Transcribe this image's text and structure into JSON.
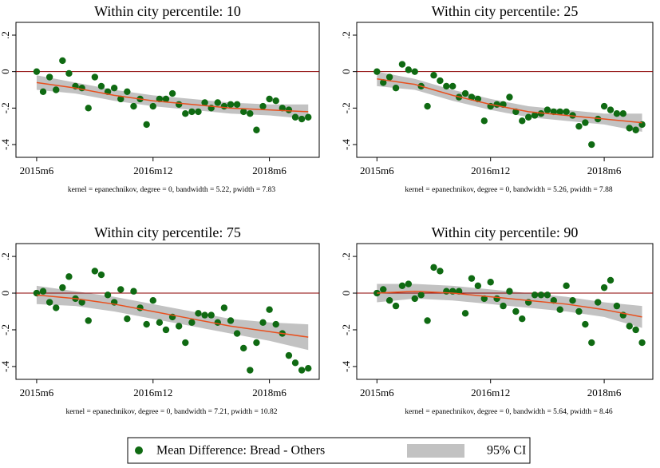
{
  "legend": [
    {
      "name": "Mean Difference: Bread - Others",
      "color": "#0f6a12"
    },
    {
      "name": "95% CI",
      "color": "#c2c2c2"
    }
  ],
  "chart_data": [
    {
      "type": "scatter",
      "title": "Within city percentile: 10",
      "note": "kernel = epanechnikov, degree = 0, bandwidth = 5.22, pwidth = 7.83",
      "x": [
        0,
        1,
        2,
        3,
        4,
        5,
        6,
        7,
        8,
        9,
        10,
        11,
        12,
        13,
        14,
        15,
        16,
        17,
        18,
        19,
        20,
        21,
        22,
        23,
        24,
        25,
        26,
        27,
        28,
        29,
        30,
        31,
        32,
        33,
        34,
        35,
        36,
        37,
        38,
        39,
        40,
        41,
        42
      ],
      "values": [
        0,
        -0.11,
        -0.03,
        -0.1,
        0.06,
        -0.01,
        -0.08,
        -0.09,
        -0.2,
        -0.03,
        -0.08,
        -0.11,
        -0.09,
        -0.15,
        -0.11,
        -0.19,
        -0.15,
        -0.29,
        -0.19,
        -0.15,
        -0.15,
        -0.12,
        -0.18,
        -0.23,
        -0.22,
        -0.22,
        -0.17,
        -0.2,
        -0.17,
        -0.19,
        -0.18,
        -0.18,
        -0.22,
        -0.23,
        -0.32,
        -0.19,
        -0.15,
        -0.16,
        -0.2,
        -0.21,
        -0.25,
        -0.26,
        -0.25
      ],
      "fit_x": [
        0,
        6,
        12,
        18,
        24,
        30,
        36,
        42
      ],
      "fit": [
        -0.06,
        -0.09,
        -0.13,
        -0.16,
        -0.18,
        -0.2,
        -0.21,
        -0.22
      ],
      "ci_lower": [
        -0.1,
        -0.12,
        -0.16,
        -0.19,
        -0.21,
        -0.23,
        -0.24,
        -0.26
      ],
      "ci_upper": [
        -0.02,
        -0.06,
        -0.1,
        -0.13,
        -0.15,
        -0.17,
        -0.18,
        -0.18
      ],
      "fit_color": "#e8501e",
      "hline": 0,
      "hline_color": "#8b0000",
      "xlim": [
        -3.2,
        43.7
      ],
      "ylim": [
        -0.47,
        0.27
      ],
      "xticks": [
        {
          "value": 0,
          "label": "2015m6"
        },
        {
          "value": 18,
          "label": "2016m12"
        },
        {
          "value": 36,
          "label": "2018m6"
        }
      ],
      "yticks": [
        {
          "value": 0.2,
          "label": ".2"
        },
        0,
        {
          "value": -0.2,
          "label": "-.2"
        },
        {
          "value": -0.4,
          "label": "-.4"
        }
      ]
    },
    {
      "type": "scatter",
      "title": "Within city percentile: 25",
      "note": "kernel = epanechnikov, degree = 0, bandwidth = 5.26, pwidth = 7.88",
      "x": [
        0,
        1,
        2,
        3,
        4,
        5,
        6,
        7,
        8,
        9,
        10,
        11,
        12,
        13,
        14,
        15,
        16,
        17,
        18,
        19,
        20,
        21,
        22,
        23,
        24,
        25,
        26,
        27,
        28,
        29,
        30,
        31,
        32,
        33,
        34,
        35,
        36,
        37,
        38,
        39,
        40,
        41,
        42
      ],
      "values": [
        0,
        -0.06,
        -0.03,
        -0.09,
        0.04,
        0.01,
        0.0,
        -0.08,
        -0.19,
        -0.02,
        -0.05,
        -0.08,
        -0.08,
        -0.14,
        -0.12,
        -0.14,
        -0.15,
        -0.27,
        -0.19,
        -0.18,
        -0.18,
        -0.14,
        -0.22,
        -0.27,
        -0.25,
        -0.24,
        -0.23,
        -0.21,
        -0.22,
        -0.22,
        -0.22,
        -0.24,
        -0.3,
        -0.28,
        -0.4,
        -0.26,
        -0.19,
        -0.21,
        -0.23,
        -0.23,
        -0.31,
        -0.32,
        -0.29
      ],
      "fit_x": [
        0,
        6,
        12,
        18,
        24,
        30,
        36,
        42
      ],
      "fit": [
        -0.04,
        -0.07,
        -0.13,
        -0.18,
        -0.22,
        -0.24,
        -0.26,
        -0.28
      ],
      "ci_lower": [
        -0.08,
        -0.1,
        -0.16,
        -0.21,
        -0.25,
        -0.27,
        -0.29,
        -0.33
      ],
      "ci_upper": [
        0.0,
        -0.04,
        -0.1,
        -0.15,
        -0.19,
        -0.21,
        -0.23,
        -0.23
      ],
      "fit_color": "#e8501e",
      "hline": 0,
      "hline_color": "#8b0000",
      "xlim": [
        -3.2,
        43.7
      ],
      "ylim": [
        -0.47,
        0.27
      ],
      "xticks": [
        {
          "value": 0,
          "label": "2015m6"
        },
        {
          "value": 18,
          "label": "2016m12"
        },
        {
          "value": 36,
          "label": "2018m6"
        }
      ],
      "yticks": [
        {
          "value": 0.2,
          "label": ".2"
        },
        0,
        {
          "value": -0.2,
          "label": "-.2"
        },
        {
          "value": -0.4,
          "label": "-.4"
        }
      ]
    },
    {
      "type": "scatter",
      "title": "Within city percentile: 75",
      "note": "kernel = epanechnikov, degree = 0, bandwidth = 7.21, pwidth = 10.82",
      "x": [
        0,
        1,
        2,
        3,
        4,
        5,
        6,
        7,
        8,
        9,
        10,
        11,
        12,
        13,
        14,
        15,
        16,
        17,
        18,
        19,
        20,
        21,
        22,
        23,
        24,
        25,
        26,
        27,
        28,
        29,
        30,
        31,
        32,
        33,
        34,
        35,
        36,
        37,
        38,
        39,
        40,
        41,
        42
      ],
      "values": [
        0,
        0.01,
        -0.05,
        -0.08,
        0.03,
        0.09,
        -0.03,
        -0.05,
        -0.15,
        0.12,
        0.1,
        -0.01,
        -0.05,
        0.02,
        -0.14,
        0.01,
        -0.08,
        -0.17,
        -0.04,
        -0.16,
        -0.2,
        -0.13,
        -0.18,
        -0.27,
        -0.16,
        -0.11,
        -0.12,
        -0.12,
        -0.16,
        -0.08,
        -0.15,
        -0.22,
        -0.3,
        -0.42,
        -0.27,
        -0.16,
        -0.09,
        -0.17,
        -0.22,
        -0.34,
        -0.38,
        -0.42,
        -0.41
      ],
      "fit_x": [
        0,
        6,
        12,
        18,
        24,
        30,
        36,
        42
      ],
      "fit": [
        -0.01,
        -0.03,
        -0.06,
        -0.1,
        -0.14,
        -0.18,
        -0.21,
        -0.24
      ],
      "ci_lower": [
        -0.06,
        -0.07,
        -0.1,
        -0.14,
        -0.18,
        -0.22,
        -0.26,
        -0.31
      ],
      "ci_upper": [
        0.04,
        0.01,
        -0.02,
        -0.06,
        -0.1,
        -0.14,
        -0.16,
        -0.17
      ],
      "fit_color": "#e8501e",
      "hline": 0,
      "hline_color": "#8b0000",
      "xlim": [
        -3.2,
        43.7
      ],
      "ylim": [
        -0.47,
        0.27
      ],
      "xticks": [
        {
          "value": 0,
          "label": "2015m6"
        },
        {
          "value": 18,
          "label": "2016m12"
        },
        {
          "value": 36,
          "label": "2018m6"
        }
      ],
      "yticks": [
        {
          "value": 0.2,
          "label": ".2"
        },
        0,
        {
          "value": -0.2,
          "label": "-.2"
        },
        {
          "value": -0.4,
          "label": "-.4"
        }
      ]
    },
    {
      "type": "scatter",
      "title": "Within city percentile: 90",
      "note": "kernel = epanechnikov, degree = 0, bandwidth = 5.64, pwidth = 8.46",
      "x": [
        0,
        1,
        2,
        3,
        4,
        5,
        6,
        7,
        8,
        9,
        10,
        11,
        12,
        13,
        14,
        15,
        16,
        17,
        18,
        19,
        20,
        21,
        22,
        23,
        24,
        25,
        26,
        27,
        28,
        29,
        30,
        31,
        32,
        33,
        34,
        35,
        36,
        37,
        38,
        39,
        40,
        41,
        42
      ],
      "values": [
        0,
        0.02,
        -0.04,
        -0.07,
        0.04,
        0.05,
        -0.03,
        -0.01,
        -0.15,
        0.14,
        0.12,
        0.01,
        0.01,
        0.01,
        -0.11,
        0.08,
        0.04,
        -0.03,
        0.06,
        -0.03,
        -0.07,
        0.01,
        -0.1,
        -0.14,
        -0.05,
        -0.01,
        -0.01,
        -0.01,
        -0.04,
        -0.09,
        0.04,
        -0.04,
        -0.1,
        -0.17,
        -0.27,
        -0.05,
        0.03,
        0.07,
        -0.07,
        -0.12,
        -0.18,
        -0.2,
        -0.27
      ],
      "fit_x": [
        0,
        6,
        12,
        18,
        24,
        30,
        36,
        42
      ],
      "fit": [
        0.0,
        0.01,
        0.0,
        -0.02,
        -0.04,
        -0.06,
        -0.09,
        -0.13
      ],
      "ci_lower": [
        -0.05,
        -0.03,
        -0.04,
        -0.06,
        -0.08,
        -0.1,
        -0.13,
        -0.19
      ],
      "ci_upper": [
        0.05,
        0.05,
        0.04,
        0.02,
        0.0,
        -0.02,
        -0.05,
        -0.07
      ],
      "fit_color": "#e8501e",
      "hline": 0,
      "hline_color": "#8b0000",
      "xlim": [
        -3.2,
        43.7
      ],
      "ylim": [
        -0.47,
        0.27
      ],
      "xticks": [
        {
          "value": 0,
          "label": "2015m6"
        },
        {
          "value": 18,
          "label": "2016m12"
        },
        {
          "value": 36,
          "label": "2018m6"
        }
      ],
      "yticks": [
        {
          "value": 0.2,
          "label": ".2"
        },
        0,
        {
          "value": -0.2,
          "label": "-.2"
        },
        {
          "value": -0.4,
          "label": "-.4"
        }
      ]
    }
  ]
}
